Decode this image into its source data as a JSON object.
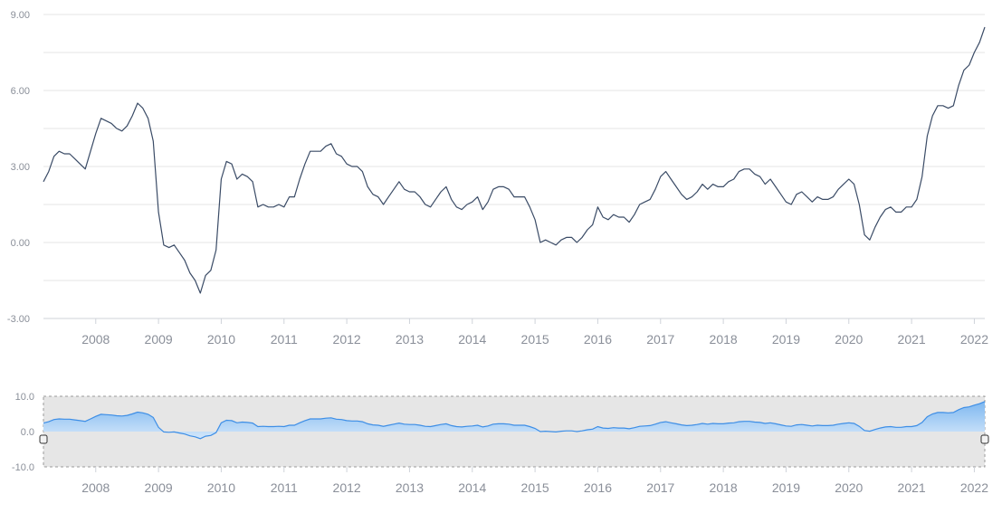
{
  "chart_data": [
    {
      "type": "line",
      "title": "",
      "xlabel": "",
      "ylabel": "",
      "ylim": [
        -3.0,
        9.0
      ],
      "yticks": [
        "9.00",
        "6.00",
        "3.00",
        "0.00",
        "-3.00"
      ],
      "xticks": [
        "2008",
        "2009",
        "2010",
        "2011",
        "2012",
        "2013",
        "2014",
        "2015",
        "2016",
        "2017",
        "2018",
        "2019",
        "2020",
        "2021",
        "2022"
      ],
      "x_range": [
        "2007-03",
        "2022-03"
      ],
      "grid": true,
      "legend": "none",
      "color": "#3a4b66",
      "series": [
        {
          "x": [
            "2007-03",
            "2007-04",
            "2007-05",
            "2007-06",
            "2007-07",
            "2007-08",
            "2007-09",
            "2007-10",
            "2007-11",
            "2007-12",
            "2008-01",
            "2008-02",
            "2008-03",
            "2008-04",
            "2008-05",
            "2008-06",
            "2008-07",
            "2008-08",
            "2008-09",
            "2008-10",
            "2008-11",
            "2008-12",
            "2009-01",
            "2009-02",
            "2009-03",
            "2009-04",
            "2009-05",
            "2009-06",
            "2009-07",
            "2009-08",
            "2009-09",
            "2009-10",
            "2009-11",
            "2009-12",
            "2010-01",
            "2010-02",
            "2010-03",
            "2010-04",
            "2010-05",
            "2010-06",
            "2010-07",
            "2010-08",
            "2010-09",
            "2010-10",
            "2010-11",
            "2010-12",
            "2011-01",
            "2011-02",
            "2011-03",
            "2011-04",
            "2011-05",
            "2011-06",
            "2011-07",
            "2011-08",
            "2011-09",
            "2011-10",
            "2011-11",
            "2011-12",
            "2012-01",
            "2012-02",
            "2012-03",
            "2012-04",
            "2012-05",
            "2012-06",
            "2012-07",
            "2012-08",
            "2012-09",
            "2012-10",
            "2012-11",
            "2012-12",
            "2013-01",
            "2013-02",
            "2013-03",
            "2013-04",
            "2013-05",
            "2013-06",
            "2013-07",
            "2013-08",
            "2013-09",
            "2013-10",
            "2013-11",
            "2013-12",
            "2014-01",
            "2014-02",
            "2014-03",
            "2014-04",
            "2014-05",
            "2014-06",
            "2014-07",
            "2014-08",
            "2014-09",
            "2014-10",
            "2014-11",
            "2014-12",
            "2015-01",
            "2015-02",
            "2015-03",
            "2015-04",
            "2015-05",
            "2015-06",
            "2015-07",
            "2015-08",
            "2015-09",
            "2015-10",
            "2015-11",
            "2015-12",
            "2016-01",
            "2016-02",
            "2016-03",
            "2016-04",
            "2016-05",
            "2016-06",
            "2016-07",
            "2016-08",
            "2016-09",
            "2016-10",
            "2016-11",
            "2016-12",
            "2017-01",
            "2017-02",
            "2017-03",
            "2017-04",
            "2017-05",
            "2017-06",
            "2017-07",
            "2017-08",
            "2017-09",
            "2017-10",
            "2017-11",
            "2017-12",
            "2018-01",
            "2018-02",
            "2018-03",
            "2018-04",
            "2018-05",
            "2018-06",
            "2018-07",
            "2018-08",
            "2018-09",
            "2018-10",
            "2018-11",
            "2018-12",
            "2019-01",
            "2019-02",
            "2019-03",
            "2019-04",
            "2019-05",
            "2019-06",
            "2019-07",
            "2019-08",
            "2019-09",
            "2019-10",
            "2019-11",
            "2019-12",
            "2020-01",
            "2020-02",
            "2020-03",
            "2020-04",
            "2020-05",
            "2020-06",
            "2020-07",
            "2020-08",
            "2020-09",
            "2020-10",
            "2020-11",
            "2020-12",
            "2021-01",
            "2021-02",
            "2021-03",
            "2021-04",
            "2021-05",
            "2021-06",
            "2021-07",
            "2021-08",
            "2021-09",
            "2021-10",
            "2021-11",
            "2021-12",
            "2022-01",
            "2022-02",
            "2022-03"
          ],
          "values": [
            2.4,
            2.8,
            3.4,
            3.6,
            3.5,
            3.5,
            3.3,
            3.1,
            2.9,
            3.6,
            4.3,
            4.9,
            4.8,
            4.7,
            4.5,
            4.4,
            4.6,
            5.0,
            5.5,
            5.3,
            4.9,
            4.0,
            1.2,
            -0.1,
            -0.2,
            -0.1,
            -0.4,
            -0.7,
            -1.2,
            -1.5,
            -2.0,
            -1.3,
            -1.1,
            -0.3,
            2.5,
            3.2,
            3.1,
            2.5,
            2.7,
            2.6,
            2.4,
            1.4,
            1.5,
            1.4,
            1.4,
            1.5,
            1.4,
            1.8,
            1.8,
            2.5,
            3.1,
            3.6,
            3.6,
            3.6,
            3.8,
            3.9,
            3.5,
            3.4,
            3.1,
            3.0,
            3.0,
            2.8,
            2.2,
            1.9,
            1.8,
            1.5,
            1.8,
            2.1,
            2.4,
            2.1,
            2.0,
            2.0,
            1.8,
            1.5,
            1.4,
            1.7,
            2.0,
            2.2,
            1.7,
            1.4,
            1.3,
            1.5,
            1.6,
            1.8,
            1.3,
            1.6,
            2.1,
            2.2,
            2.2,
            2.1,
            1.8,
            1.8,
            1.8,
            1.4,
            0.9,
            0.0,
            0.1,
            0.0,
            -0.1,
            0.1,
            0.2,
            0.2,
            0.0,
            0.2,
            0.5,
            0.7,
            1.4,
            1.0,
            0.9,
            1.1,
            1.0,
            1.0,
            0.8,
            1.1,
            1.5,
            1.6,
            1.7,
            2.1,
            2.6,
            2.8,
            2.5,
            2.2,
            1.9,
            1.7,
            1.8,
            2.0,
            2.3,
            2.1,
            2.3,
            2.2,
            2.2,
            2.4,
            2.5,
            2.8,
            2.9,
            2.9,
            2.7,
            2.6,
            2.3,
            2.5,
            2.2,
            1.9,
            1.6,
            1.5,
            1.9,
            2.0,
            1.8,
            1.6,
            1.8,
            1.7,
            1.7,
            1.8,
            2.1,
            2.3,
            2.5,
            2.3,
            1.5,
            0.3,
            0.1,
            0.6,
            1.0,
            1.3,
            1.4,
            1.2,
            1.2,
            1.4,
            1.4,
            1.7,
            2.6,
            4.2,
            5.0,
            5.4,
            5.4,
            5.3,
            5.4,
            6.2,
            6.8,
            7.0,
            7.5,
            7.9,
            8.5
          ]
        }
      ]
    },
    {
      "type": "area",
      "title": "",
      "xlabel": "",
      "ylabel": "",
      "ylim": [
        -10.0,
        10.0
      ],
      "yticks": [
        "10.0",
        "0.0",
        "-10.0"
      ],
      "xticks": [
        "2008",
        "2009",
        "2010",
        "2011",
        "2012",
        "2013",
        "2014",
        "2015",
        "2016",
        "2017",
        "2018",
        "2019",
        "2020",
        "2021",
        "2022"
      ],
      "x_range": [
        "2007-03",
        "2022-03"
      ],
      "grid": false,
      "legend": "none",
      "color": "#3d8ee6",
      "selection": "full range",
      "series_ref": "same series as main chart"
    }
  ]
}
